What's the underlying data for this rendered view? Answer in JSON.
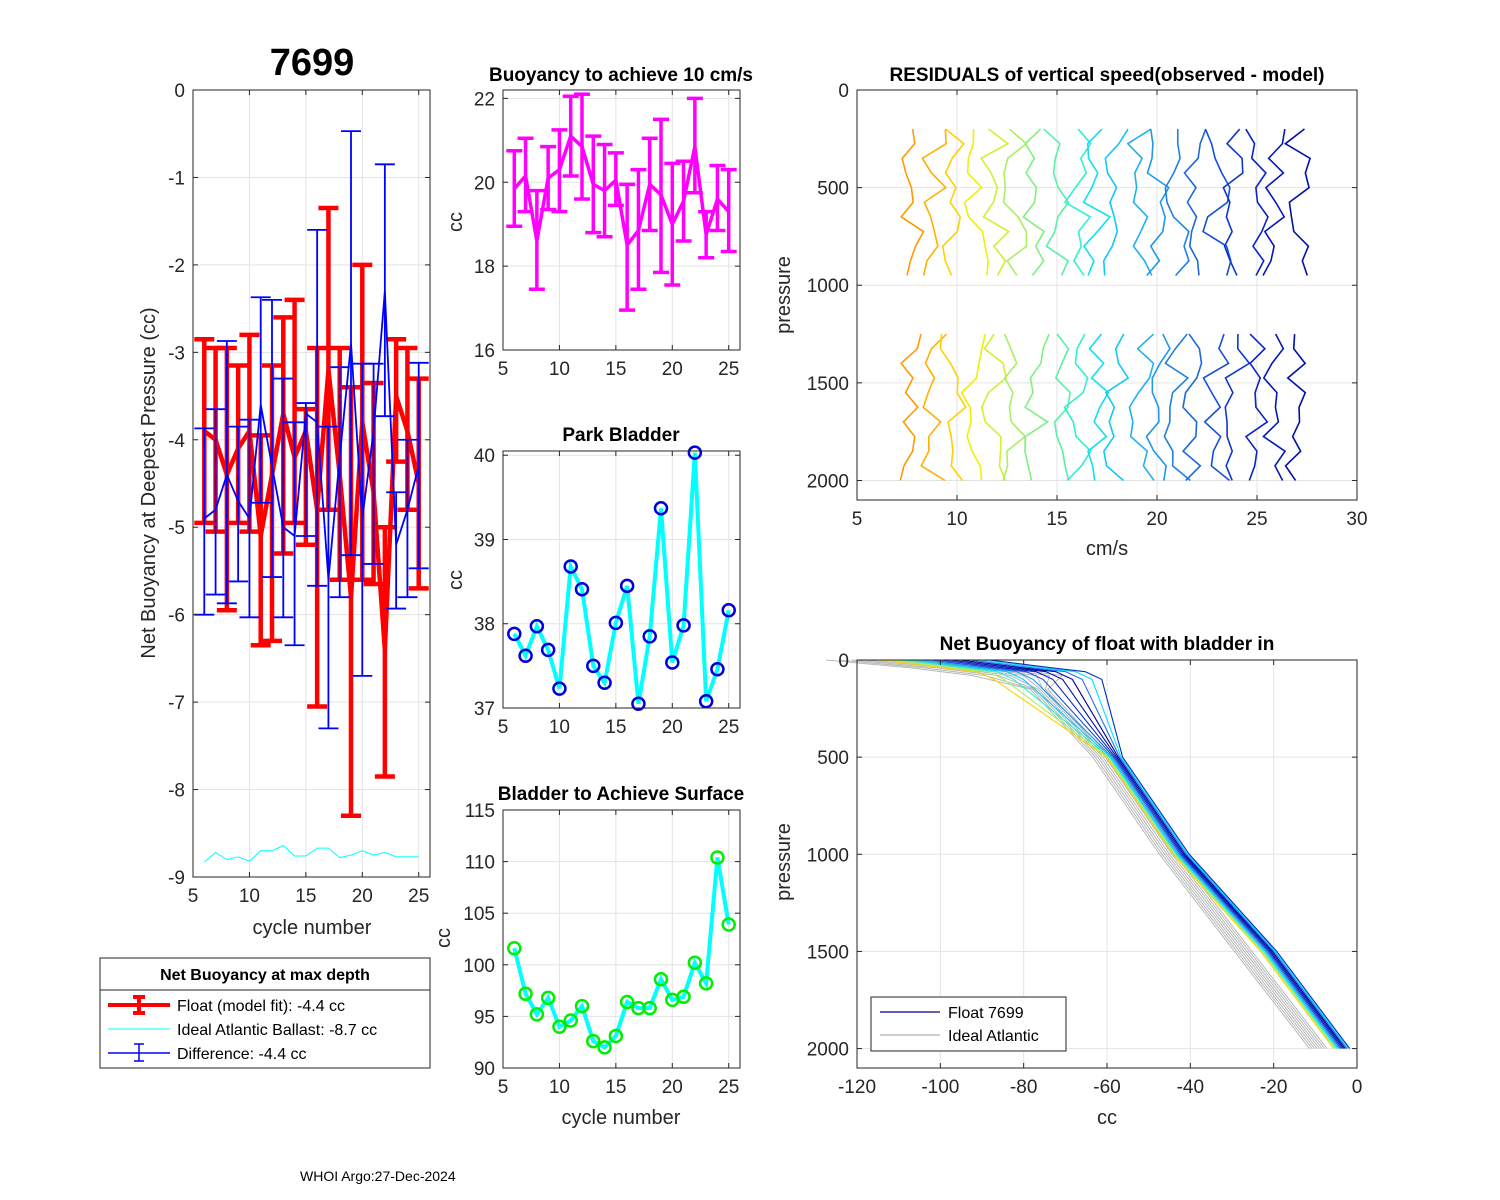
{
  "page": {
    "footer": "WHOI Argo:27-Dec-2024"
  },
  "chart_data": [
    {
      "id": "net-buoyancy-deepest",
      "type": "line",
      "title": "7699",
      "xlabel": "cycle number",
      "ylabel": "Net Buoyancy at Deepest Pressure (cc)",
      "xlim": [
        5,
        26
      ],
      "ylim": [
        -9,
        0
      ],
      "xticks": [
        "5",
        "10",
        "15",
        "20",
        "25"
      ],
      "xtick_values": [
        5,
        10,
        15,
        20,
        25
      ],
      "yticks": [
        "0",
        "-1",
        "-2",
        "-3",
        "-4",
        "-5",
        "-6",
        "-7",
        "-8",
        "-9"
      ],
      "ytick_values": [
        0,
        -1,
        -2,
        -3,
        -4,
        -5,
        -6,
        -7,
        -8,
        -9
      ],
      "grid": true,
      "x": [
        6,
        7,
        8,
        9,
        10,
        11,
        12,
        13,
        14,
        15,
        16,
        17,
        18,
        19,
        20,
        21,
        22,
        23,
        24,
        25
      ],
      "series": [
        {
          "name": "Float (model fit)",
          "color": "#ff0000",
          "errorbar": true,
          "values": [
            -3.9,
            -4.0,
            -4.4,
            -4.1,
            -3.9,
            -5.1,
            -4.4,
            -3.7,
            -4.2,
            -3.9,
            -4.8,
            -3.2,
            -4.4,
            -5.8,
            -3.8,
            -4.6,
            -6.4,
            -3.5,
            -3.9,
            -4.5
          ],
          "upper": [
            -2.85,
            -2.95,
            -2.95,
            -3.15,
            -2.8,
            -3.95,
            -3.15,
            -2.6,
            -2.4,
            -3.65,
            -2.95,
            -1.35,
            -2.95,
            -3.4,
            -2.0,
            -3.35,
            -5.0,
            -2.85,
            -2.95,
            -3.3
          ],
          "lower": [
            -4.95,
            -5.05,
            -5.95,
            -4.95,
            -5.05,
            -6.35,
            -6.3,
            -5.3,
            -4.95,
            -5.2,
            -7.05,
            -4.8,
            -5.6,
            -8.3,
            -5.6,
            -5.65,
            -7.85,
            -4.25,
            -4.8,
            -5.7
          ]
        },
        {
          "name": "Ideal Atlantic Ballast",
          "color": "#00ffff",
          "errorbar": false,
          "values": [
            -8.83,
            -8.72,
            -8.8,
            -8.77,
            -8.82,
            -8.7,
            -8.7,
            -8.64,
            -8.76,
            -8.76,
            -8.67,
            -8.67,
            -8.78,
            -8.75,
            -8.7,
            -8.75,
            -8.72,
            -8.77,
            -8.77,
            -8.77
          ]
        },
        {
          "name": "Difference",
          "color": "#0000ff",
          "errorbar": true,
          "values": [
            -4.9,
            -4.8,
            -4.4,
            -4.7,
            -4.9,
            -3.6,
            -4.3,
            -5.0,
            -5.1,
            -3.7,
            -3.8,
            -5.6,
            -4.2,
            -2.9,
            -4.9,
            -3.9,
            -2.3,
            -5.2,
            -4.8,
            -4.3
          ],
          "upper": [
            -3.87,
            -3.65,
            -2.87,
            -3.85,
            -3.77,
            -2.37,
            -2.4,
            -3.3,
            -3.8,
            -3.58,
            -1.6,
            -3.85,
            -3.17,
            -0.47,
            -3.13,
            -3.13,
            -0.85,
            -4.6,
            -4.0,
            -3.12
          ],
          "lower": [
            -6.0,
            -5.77,
            -5.87,
            -5.62,
            -6.03,
            -4.72,
            -5.57,
            -6.03,
            -6.35,
            -5.1,
            -5.67,
            -7.3,
            -5.8,
            -5.32,
            -6.7,
            -5.42,
            -3.73,
            -5.93,
            -5.8,
            -5.47
          ]
        }
      ],
      "legend": {
        "title": "Net Buoyancy at max depth",
        "placement": "below",
        "entries": [
          {
            "label": "Float (model fit):  -4.4 cc",
            "color": "#ff0000",
            "style": "thick-errorbar"
          },
          {
            "label": "Ideal Atlantic Ballast:  -8.7 cc",
            "color": "#00ffff",
            "style": "line"
          },
          {
            "label": "Difference:  -4.4 cc",
            "color": "#0000ff",
            "style": "errorbar"
          }
        ]
      }
    },
    {
      "id": "buoyancy-10cms",
      "type": "line",
      "title": "Buoyancy to achieve 10 cm/s",
      "xlabel": "",
      "ylabel": "cc",
      "xlim": [
        5,
        26
      ],
      "ylim": [
        16,
        22.2
      ],
      "xticks": [
        "5",
        "10",
        "15",
        "20",
        "25"
      ],
      "xtick_values": [
        5,
        10,
        15,
        20,
        25
      ],
      "yticks": [
        "22",
        "20",
        "18",
        "16"
      ],
      "ytick_values": [
        22,
        20,
        18,
        16
      ],
      "grid": true,
      "x": [
        6,
        7,
        8,
        9,
        10,
        11,
        12,
        13,
        14,
        15,
        16,
        17,
        18,
        19,
        20,
        21,
        22,
        23,
        24,
        25
      ],
      "series": [
        {
          "name": "buoyancy",
          "color": "#ff00ff",
          "errorbar": true,
          "values": [
            19.85,
            20.15,
            18.6,
            20.1,
            20.3,
            21.1,
            20.85,
            19.95,
            19.8,
            20.05,
            18.5,
            18.85,
            19.95,
            19.7,
            19.0,
            19.55,
            20.85,
            18.75,
            19.6,
            19.3
          ],
          "upper": [
            20.75,
            21.05,
            19.8,
            20.85,
            21.25,
            22.05,
            22.1,
            21.1,
            20.9,
            20.7,
            19.95,
            20.3,
            21.05,
            21.5,
            20.45,
            20.5,
            22.0,
            19.3,
            20.4,
            20.3
          ],
          "lower": [
            18.95,
            19.3,
            17.45,
            19.35,
            19.3,
            20.15,
            19.6,
            18.8,
            18.7,
            19.45,
            16.95,
            17.45,
            18.85,
            17.85,
            17.55,
            18.6,
            19.75,
            18.2,
            18.85,
            18.35
          ]
        }
      ]
    },
    {
      "id": "park-bladder",
      "type": "line",
      "title": "Park Bladder",
      "xlabel": "",
      "ylabel": "cc",
      "xlim": [
        5,
        26
      ],
      "ylim": [
        37,
        40.05
      ],
      "xticks": [
        "5",
        "10",
        "15",
        "20",
        "25"
      ],
      "xtick_values": [
        5,
        10,
        15,
        20,
        25
      ],
      "yticks": [
        "40",
        "39",
        "38",
        "37"
      ],
      "ytick_values": [
        40,
        39,
        38,
        37
      ],
      "grid": true,
      "x": [
        6,
        7,
        8,
        9,
        10,
        11,
        12,
        13,
        14,
        15,
        16,
        17,
        18,
        19,
        20,
        21,
        22,
        23,
        24,
        25
      ],
      "series": [
        {
          "name": "park bladder",
          "color": "#00ffff",
          "marker_color": "#0000dd",
          "values": [
            37.88,
            37.62,
            37.97,
            37.69,
            37.23,
            38.68,
            38.41,
            37.5,
            37.3,
            38.01,
            38.45,
            37.05,
            37.85,
            39.37,
            37.54,
            37.98,
            40.03,
            37.08,
            37.46,
            38.16
          ]
        }
      ]
    },
    {
      "id": "bladder-surface",
      "type": "line",
      "title": "Bladder to Achieve Surface",
      "xlabel": "cycle number",
      "ylabel": "cc",
      "xlim": [
        5,
        26
      ],
      "ylim": [
        90,
        115
      ],
      "xticks": [
        "5",
        "10",
        "15",
        "20",
        "25"
      ],
      "xtick_values": [
        5,
        10,
        15,
        20,
        25
      ],
      "yticks": [
        "115",
        "110",
        "105",
        "100",
        "95",
        "90"
      ],
      "ytick_values": [
        115,
        110,
        105,
        100,
        95,
        90
      ],
      "grid": true,
      "x": [
        6,
        7,
        8,
        9,
        10,
        11,
        12,
        13,
        14,
        15,
        16,
        17,
        18,
        19,
        20,
        21,
        22,
        23,
        24,
        25
      ],
      "series": [
        {
          "name": "bladder to surface",
          "color": "#00ffff",
          "marker_color": "#00ee00",
          "values": [
            101.6,
            97.2,
            95.2,
            96.8,
            94.0,
            94.6,
            96.0,
            92.6,
            92.0,
            93.1,
            96.4,
            95.8,
            95.8,
            98.6,
            96.6,
            96.9,
            100.2,
            98.2,
            110.4,
            103.9
          ]
        }
      ]
    },
    {
      "id": "residuals",
      "type": "line",
      "title": "RESIDUALS of vertical speed(observed - model)",
      "xlabel": "cm/s",
      "ylabel": "pressure",
      "xlim": [
        5,
        30
      ],
      "ylim": [
        2100,
        0
      ],
      "xticks": [
        "5",
        "10",
        "15",
        "20",
        "25",
        "30"
      ],
      "xtick_values": [
        5,
        10,
        15,
        20,
        25,
        30
      ],
      "yticks": [
        "0",
        "500",
        "1000",
        "1500",
        "2000"
      ],
      "ytick_values": [
        0,
        500,
        1000,
        1500,
        2000
      ],
      "grid": true,
      "note": "Each profile is offset by ~1 cm/s per cycle; upper segment spans 200-1000 dbar, lower 1250-2000 dbar",
      "profile_offsets": [
        7.8,
        8.8,
        9.8,
        10.9,
        11.9,
        13.0,
        14.0,
        15.0,
        16.0,
        17.0,
        18.0,
        19.2,
        20.0,
        21.0,
        22.0,
        23.0,
        24.0,
        25.0,
        26.0,
        27.0
      ],
      "profile_colors": [
        "#ff9a00",
        "#ffb000",
        "#ffd000",
        "#f0f000",
        "#d0f030",
        "#a8f060",
        "#80f080",
        "#58f0a8",
        "#30f0d0",
        "#10e0f0",
        "#10c8f8",
        "#20b0f0",
        "#2098e8",
        "#2080e0",
        "#1c68d8",
        "#1450d8",
        "#0c38d0",
        "#0824c8",
        "#0418b8",
        "#0010a8"
      ]
    },
    {
      "id": "net-buoyancy-bladder-in",
      "type": "line",
      "title": "Net Buoyancy of float with bladder in",
      "xlabel": "cc",
      "ylabel": "pressure",
      "xlim": [
        -120,
        0
      ],
      "ylim": [
        2100,
        0
      ],
      "xticks": [
        "-120",
        "-100",
        "-80",
        "-60",
        "-40",
        "-20",
        "0"
      ],
      "xtick_values": [
        -120,
        -100,
        -80,
        -60,
        -40,
        -20,
        0
      ],
      "yticks": [
        "0",
        "500",
        "1000",
        "1500",
        "2000"
      ],
      "ytick_values": [
        0,
        500,
        1000,
        1500,
        2000
      ],
      "grid": true,
      "float_profile": {
        "pressure": [
          0,
          40,
          60,
          100,
          500,
          1000,
          1500,
          2000
        ],
        "cc": [
          -100,
          -85,
          -77,
          -73,
          -58,
          -42,
          -21,
          -3.5
        ]
      },
      "ideal_profile": {
        "pressure": [
          0,
          40,
          80,
          150,
          500,
          1000,
          1500,
          2000
        ],
        "cc": [
          -115,
          -95,
          -80,
          -76,
          -61,
          -45,
          -27,
          -9
        ]
      },
      "legend": {
        "placement": "bottom-left",
        "entries": [
          {
            "label": "Float 7699",
            "color": "#00008b"
          },
          {
            "label": "Ideal Atlantic",
            "color": "#b0b0b0"
          }
        ]
      }
    }
  ]
}
